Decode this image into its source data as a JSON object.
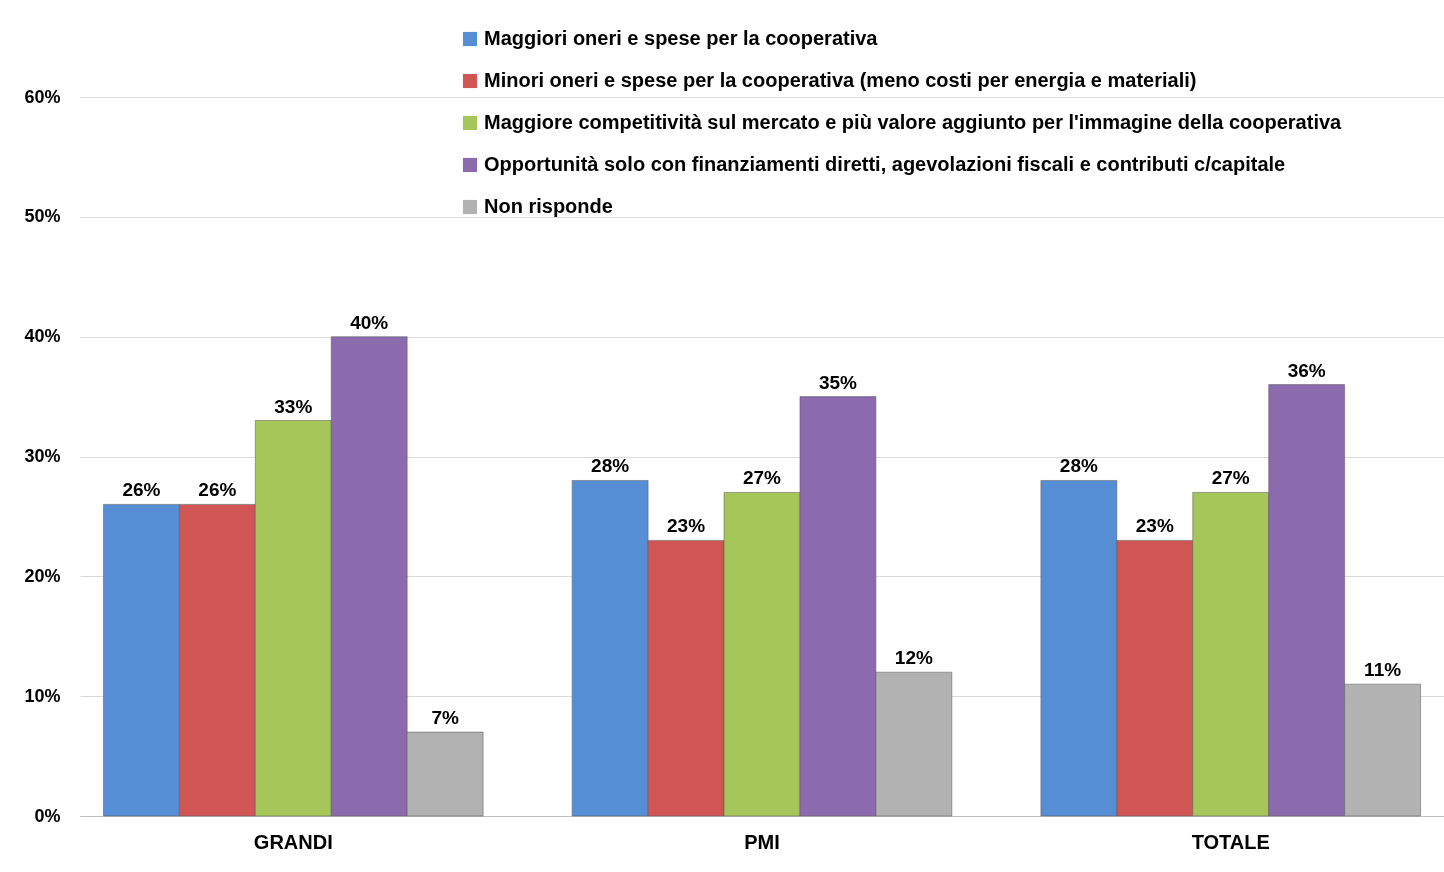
{
  "chart_data": {
    "type": "bar",
    "categories": [
      "GRANDI",
      "PMI",
      "TOTALE"
    ],
    "series": [
      {
        "name": "Maggiori oneri e spese per la cooperativa",
        "color": "#558ed5",
        "values": [
          26,
          28,
          28
        ],
        "value_labels": [
          "26%",
          "28%",
          "28%"
        ]
      },
      {
        "name": "Minori oneri e spese per la cooperativa (meno costi per energia e materiali)",
        "color": "#d05555",
        "values": [
          26,
          23,
          23
        ],
        "value_labels": [
          "26%",
          "23%",
          "23%"
        ]
      },
      {
        "name": "Maggiore competitività sul mercato e più valore aggiunto per l'immagine della cooperativa",
        "color": "#a6c65a",
        "values": [
          33,
          27,
          27
        ],
        "value_labels": [
          "33%",
          "27%",
          "27%"
        ]
      },
      {
        "name": "Opportunità solo con finanziamenti diretti, agevolazioni fiscali e contributi c/capitale",
        "color": "#8c6aae",
        "values": [
          40,
          35,
          36
        ],
        "value_labels": [
          "40%",
          "35%",
          "36%"
        ]
      },
      {
        "name": "Non risponde",
        "color": "#b2b2b2",
        "values": [
          7,
          12,
          11
        ],
        "value_labels": [
          "7%",
          "12%",
          "11%"
        ]
      }
    ],
    "ylim": [
      0,
      60
    ],
    "yticks": [
      {
        "value": 0,
        "label": "0%"
      },
      {
        "value": 10,
        "label": "10%"
      },
      {
        "value": 20,
        "label": "20%"
      },
      {
        "value": 30,
        "label": "30%"
      },
      {
        "value": 40,
        "label": "40%"
      },
      {
        "value": 50,
        "label": "50%"
      },
      {
        "value": 60,
        "label": "60%"
      }
    ],
    "grid": "y",
    "legend": "top"
  }
}
